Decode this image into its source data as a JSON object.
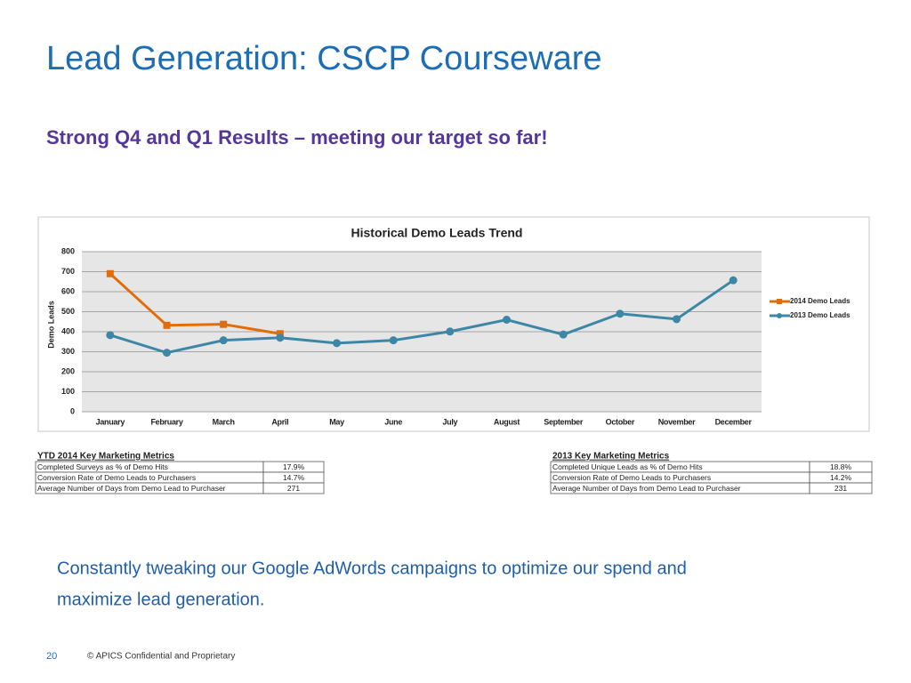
{
  "title": "Lead Generation:  CSCP Courseware",
  "subtitle": "Strong Q4 and Q1 Results –  meeting our target so far!",
  "chart_data": {
    "type": "line",
    "title": "Historical Demo Leads Trend",
    "y_label": "Demo Leads",
    "categories": [
      "January",
      "February",
      "March",
      "April",
      "May",
      "June",
      "July",
      "August",
      "September",
      "October",
      "November",
      "December"
    ],
    "series": [
      {
        "name": "2014 Demo Leads",
        "color": "#e36c0a",
        "marker": "square",
        "values": [
          690,
          432,
          437,
          390,
          null,
          null,
          null,
          null,
          null,
          null,
          null,
          null
        ]
      },
      {
        "name": "2013 Demo Leads",
        "color": "#3d87a6",
        "marker": "circle",
        "values": [
          383,
          295,
          357,
          370,
          343,
          357,
          401,
          460,
          386,
          490,
          463,
          657
        ]
      }
    ],
    "ylim": [
      0,
      800
    ],
    "yticks": [
      0,
      100,
      200,
      300,
      400,
      500,
      600,
      700,
      800
    ],
    "grid": true,
    "legend": "right"
  },
  "tables": [
    {
      "title": "YTD 2014 Key Marketing Metrics",
      "rows": [
        [
          "Completed Surveys as % of Demo Hits",
          "17.9%"
        ],
        [
          "Conversion Rate of Demo Leads to Purchasers",
          "14.7%"
        ],
        [
          "Average Number of Days from Demo Lead to Purchaser",
          "271"
        ]
      ]
    },
    {
      "title": "2013 Key Marketing Metrics",
      "rows": [
        [
          "Completed Unique Leads as % of Demo Hits",
          "18.8%"
        ],
        [
          "Conversion Rate of Demo Leads to Purchasers",
          "14.2%"
        ],
        [
          "Average Number of Days from Demo Lead to Purchaser",
          "231"
        ]
      ]
    }
  ],
  "body": [
    "Constantly tweaking our Google AdWords campaigns to optimize our spend and",
    "maximize lead generation."
  ],
  "footer": {
    "page": "20",
    "text": "© APICS Confidential and Proprietary"
  }
}
